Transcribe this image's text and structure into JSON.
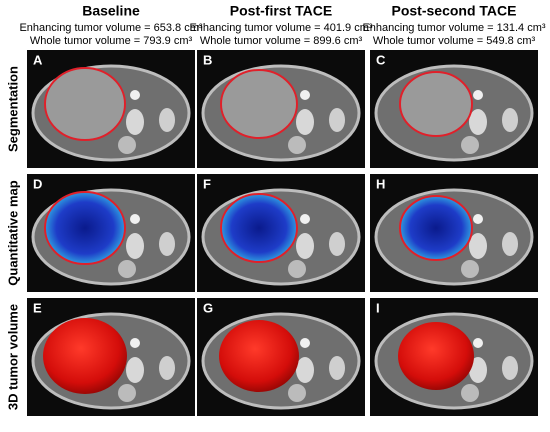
{
  "columns": [
    {
      "title": "Baseline",
      "enhancing": "Enhancing tumor volume = 653.8 cm³",
      "whole": "Whole tumor volume = 793.9 cm³"
    },
    {
      "title": "Post-first TACE",
      "enhancing": "Enhancing tumor volume = 401.9 cm³",
      "whole": "Whole tumor volume = 899.6 cm³"
    },
    {
      "title": "Post-second TACE",
      "enhancing": "Enhancing tumor volume = 131.4 cm³",
      "whole": "Whole tumor volume = 549.8 cm³"
    }
  ],
  "rows": [
    {
      "label": "Segmentation",
      "panels": [
        "A",
        "B",
        "C"
      ]
    },
    {
      "label": "Quantitative map",
      "panels": [
        "D",
        "F",
        "H"
      ]
    },
    {
      "label": "3D tumor volume",
      "panels": [
        "E",
        "G",
        "I"
      ]
    }
  ]
}
